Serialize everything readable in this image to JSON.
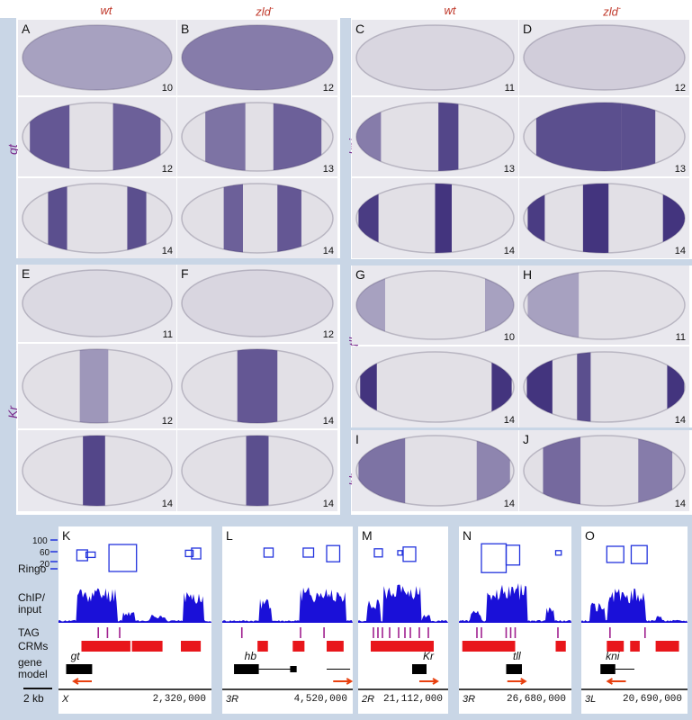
{
  "headers": {
    "left_wt": "wt",
    "left_zld": "zld",
    "right_wt": "wt",
    "right_zld": "zld",
    "superscript": "-"
  },
  "side_labels": {
    "gt": "gt",
    "kni": "kni",
    "kr": "Kr",
    "tll": "tll",
    "hb": "hb"
  },
  "panels": [
    {
      "letter": "A",
      "stage": "10"
    },
    {
      "letter": "B",
      "stage": "12"
    },
    {
      "letter": "",
      "stage": "12"
    },
    {
      "letter": "",
      "stage": "13"
    },
    {
      "letter": "",
      "stage": "14"
    },
    {
      "letter": "",
      "stage": "14"
    },
    {
      "letter": "C",
      "stage": "11"
    },
    {
      "letter": "D",
      "stage": "12"
    },
    {
      "letter": "",
      "stage": "13"
    },
    {
      "letter": "",
      "stage": "13"
    },
    {
      "letter": "",
      "stage": "14"
    },
    {
      "letter": "",
      "stage": "14"
    },
    {
      "letter": "E",
      "stage": "11"
    },
    {
      "letter": "F",
      "stage": "12"
    },
    {
      "letter": "",
      "stage": "12"
    },
    {
      "letter": "",
      "stage": "14"
    },
    {
      "letter": "",
      "stage": "14"
    },
    {
      "letter": "",
      "stage": "14"
    },
    {
      "letter": "G",
      "stage": "10"
    },
    {
      "letter": "H",
      "stage": "11"
    },
    {
      "letter": "",
      "stage": "14"
    },
    {
      "letter": "",
      "stage": "14"
    },
    {
      "letter": "I",
      "stage": "14"
    },
    {
      "letter": "J",
      "stage": "14"
    }
  ],
  "track_rows": {
    "scale_100": "100",
    "scale_60": "60",
    "scale_20": "20",
    "ringo": "Ringo",
    "chip1": "ChIP/",
    "chip2": "input",
    "tag": "TAG",
    "crms": "CRMs",
    "gm1": "gene",
    "gm2": "model",
    "scalebar": "2 kb"
  },
  "tracks": [
    {
      "letter": "K",
      "chrom": "X",
      "coord": "2,320,000",
      "gene": "gt"
    },
    {
      "letter": "L",
      "chrom": "3R",
      "coord": "4,520,000",
      "gene": "hb"
    },
    {
      "letter": "M",
      "chrom": "2R",
      "coord": "21,112,000",
      "gene": "Kr"
    },
    {
      "letter": "N",
      "chrom": "3R",
      "coord": "26,680,000",
      "gene": "tll"
    },
    {
      "letter": "O",
      "chrom": "3L",
      "coord": "20,690,000",
      "gene": "kni"
    }
  ],
  "colors": {
    "stain": "#3a2a78",
    "ringo": "#2233dd",
    "chip": "#1a10d8",
    "crm": "#e8161b",
    "tag": "#a0208f",
    "arrow": "#e8400f",
    "sep": "#c9d6e6"
  }
}
